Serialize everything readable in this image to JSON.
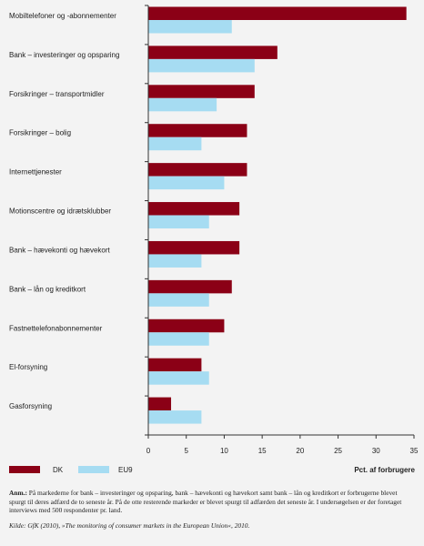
{
  "chart_data": {
    "type": "bar",
    "orientation": "horizontal",
    "categories": [
      "Mobiltelefoner og -abonnementer",
      "Bank – investeringer og opsparing",
      "Forsikringer – transportmidler",
      "Forsikringer – bolig",
      "Internettjenester",
      "Motionscentre og idrætsklubber",
      "Bank – hævekonti og hævekort",
      "Bank – lån og kreditkort",
      "Fastnettelefonabonnementer",
      "El-forsyning",
      "Gasforsyning"
    ],
    "series": [
      {
        "name": "DK",
        "color": "#8b0016",
        "values": [
          34,
          17,
          14,
          13,
          13,
          12,
          12,
          11,
          10,
          7,
          3
        ]
      },
      {
        "name": "EU9",
        "color": "#a6dcf2",
        "values": [
          11,
          14,
          9,
          7,
          10,
          8,
          7,
          8,
          8,
          8,
          7
        ]
      }
    ],
    "xlim": [
      0,
      35
    ],
    "xticks": [
      0,
      5,
      10,
      15,
      20,
      25,
      30,
      35
    ],
    "xlabel": "Pct. af forbrugere",
    "legend_position": "bottom-left",
    "grid": false
  },
  "note": {
    "prefix": "Anm.:",
    "text": "På markederne for bank – investeringer og opsparing, bank – hævekonti og hævekort samt bank – lån og kreditkort er forbrugerne blevet spurgt til deres adfærd de to seneste år. På de otte resterende markeder er blevet spurgt til adfærden det seneste år. I undersøgelsen er der foretaget interviews med 500 respondenter pr. land."
  },
  "source": "Kilde: GfK (2010), »The monitoring of consumer markets in the European Union«, 2010."
}
